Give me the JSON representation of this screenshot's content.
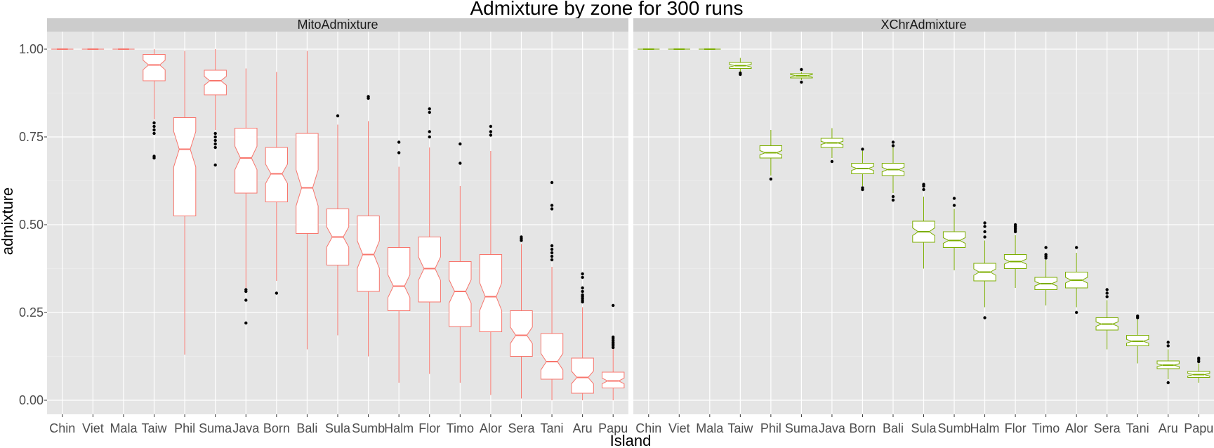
{
  "chart_data": {
    "type": "boxplot",
    "title": "Admixture by zone for 300 runs",
    "xlabel": "Island",
    "ylabel": "admixture",
    "ylim": [
      -0.04,
      1.05
    ],
    "yticks": [
      0.0,
      0.25,
      0.5,
      0.75,
      1.0
    ],
    "ytick_labels": [
      "0.00",
      "0.25",
      "0.50",
      "0.75",
      "1.00"
    ],
    "categories": [
      "Chin",
      "Viet",
      "Mala",
      "Taiw",
      "Phil",
      "Suma",
      "Java",
      "Born",
      "Bali",
      "Sula",
      "Sumb",
      "Halm",
      "Flor",
      "Timo",
      "Alor",
      "Sera",
      "Tani",
      "Aru",
      "Papu"
    ],
    "grid": true,
    "notched": true,
    "panels": [
      {
        "name": "MitoAdmixture",
        "color": "#f8766d",
        "boxes": [
          {
            "q1": 1.0,
            "median": 1.0,
            "q3": 1.0,
            "lo": 1.0,
            "hi": 1.0,
            "outliers": []
          },
          {
            "q1": 1.0,
            "median": 1.0,
            "q3": 1.0,
            "lo": 1.0,
            "hi": 1.0,
            "outliers": []
          },
          {
            "q1": 1.0,
            "median": 1.0,
            "q3": 1.0,
            "lo": 1.0,
            "hi": 1.0,
            "outliers": []
          },
          {
            "q1": 0.91,
            "median": 0.955,
            "q3": 0.985,
            "lo": 0.8,
            "hi": 1.0,
            "outliers": [
              0.79,
              0.78,
              0.77,
              0.76,
              0.695,
              0.69
            ]
          },
          {
            "q1": 0.525,
            "median": 0.715,
            "q3": 0.805,
            "lo": 0.13,
            "hi": 0.995,
            "outliers": []
          },
          {
            "q1": 0.87,
            "median": 0.91,
            "q3": 0.94,
            "lo": 0.77,
            "hi": 1.0,
            "outliers": [
              0.76,
              0.75,
              0.74,
              0.73,
              0.72,
              0.67
            ]
          },
          {
            "q1": 0.59,
            "median": 0.69,
            "q3": 0.775,
            "lo": 0.32,
            "hi": 0.945,
            "outliers": [
              0.315,
              0.31,
              0.285,
              0.22
            ]
          },
          {
            "q1": 0.565,
            "median": 0.645,
            "q3": 0.72,
            "lo": 0.34,
            "hi": 0.935,
            "outliers": [
              0.305
            ]
          },
          {
            "q1": 0.475,
            "median": 0.605,
            "q3": 0.76,
            "lo": 0.145,
            "hi": 0.995,
            "outliers": []
          },
          {
            "q1": 0.385,
            "median": 0.465,
            "q3": 0.545,
            "lo": 0.185,
            "hi": 0.785,
            "outliers": [
              0.81
            ]
          },
          {
            "q1": 0.31,
            "median": 0.415,
            "q3": 0.525,
            "lo": 0.125,
            "hi": 0.795,
            "outliers": [
              0.865,
              0.86
            ]
          },
          {
            "q1": 0.255,
            "median": 0.325,
            "q3": 0.435,
            "lo": 0.05,
            "hi": 0.665,
            "outliers": [
              0.735,
              0.705
            ]
          },
          {
            "q1": 0.28,
            "median": 0.375,
            "q3": 0.465,
            "lo": 0.075,
            "hi": 0.72,
            "outliers": [
              0.83,
              0.82,
              0.765,
              0.75
            ]
          },
          {
            "q1": 0.21,
            "median": 0.31,
            "q3": 0.395,
            "lo": 0.05,
            "hi": 0.61,
            "outliers": [
              0.73,
              0.675
            ]
          },
          {
            "q1": 0.195,
            "median": 0.295,
            "q3": 0.415,
            "lo": 0.015,
            "hi": 0.71,
            "outliers": [
              0.78,
              0.765,
              0.755
            ]
          },
          {
            "q1": 0.125,
            "median": 0.185,
            "q3": 0.255,
            "lo": 0.005,
            "hi": 0.445,
            "outliers": [
              0.465,
              0.46,
              0.455
            ]
          },
          {
            "q1": 0.06,
            "median": 0.11,
            "q3": 0.19,
            "lo": 0.0,
            "hi": 0.38,
            "outliers": [
              0.62,
              0.555,
              0.545,
              0.44,
              0.43,
              0.42,
              0.41,
              0.4
            ]
          },
          {
            "q1": 0.02,
            "median": 0.065,
            "q3": 0.12,
            "lo": 0.0,
            "hi": 0.265,
            "outliers": [
              0.36,
              0.35,
              0.32,
              0.31,
              0.3,
              0.295,
              0.29,
              0.285,
              0.28
            ]
          },
          {
            "q1": 0.035,
            "median": 0.055,
            "q3": 0.08,
            "lo": 0.0,
            "hi": 0.145,
            "outliers": [
              0.27,
              0.18,
              0.175,
              0.17,
              0.165,
              0.16,
              0.155,
              0.15
            ]
          }
        ]
      },
      {
        "name": "XChrAdmixture",
        "color": "#7cae00",
        "boxes": [
          {
            "q1": 1.0,
            "median": 1.0,
            "q3": 1.0,
            "lo": 1.0,
            "hi": 1.0,
            "outliers": []
          },
          {
            "q1": 1.0,
            "median": 1.0,
            "q3": 1.0,
            "lo": 1.0,
            "hi": 1.0,
            "outliers": []
          },
          {
            "q1": 1.0,
            "median": 1.0,
            "q3": 1.0,
            "lo": 1.0,
            "hi": 1.0,
            "outliers": []
          },
          {
            "q1": 0.945,
            "median": 0.953,
            "q3": 0.962,
            "lo": 0.935,
            "hi": 0.975,
            "outliers": [
              0.932,
              0.928
            ]
          },
          {
            "q1": 0.69,
            "median": 0.705,
            "q3": 0.725,
            "lo": 0.64,
            "hi": 0.77,
            "outliers": [
              0.63
            ]
          },
          {
            "q1": 0.918,
            "median": 0.924,
            "q3": 0.93,
            "lo": 0.912,
            "hi": 0.935,
            "outliers": [
              0.942,
              0.906
            ]
          },
          {
            "q1": 0.72,
            "median": 0.733,
            "q3": 0.746,
            "lo": 0.69,
            "hi": 0.775,
            "outliers": [
              0.68
            ]
          },
          {
            "q1": 0.645,
            "median": 0.66,
            "q3": 0.675,
            "lo": 0.61,
            "hi": 0.71,
            "outliers": [
              0.715,
              0.605,
              0.6
            ]
          },
          {
            "q1": 0.64,
            "median": 0.657,
            "q3": 0.675,
            "lo": 0.59,
            "hi": 0.72,
            "outliers": [
              0.735,
              0.725,
              0.58,
              0.57
            ]
          },
          {
            "q1": 0.45,
            "median": 0.48,
            "q3": 0.51,
            "lo": 0.375,
            "hi": 0.58,
            "outliers": [
              0.615,
              0.61,
              0.6
            ]
          },
          {
            "q1": 0.435,
            "median": 0.455,
            "q3": 0.48,
            "lo": 0.37,
            "hi": 0.545,
            "outliers": [
              0.575,
              0.555
            ]
          },
          {
            "q1": 0.34,
            "median": 0.365,
            "q3": 0.39,
            "lo": 0.265,
            "hi": 0.455,
            "outliers": [
              0.505,
              0.495,
              0.48,
              0.465,
              0.235
            ]
          },
          {
            "q1": 0.375,
            "median": 0.395,
            "q3": 0.415,
            "lo": 0.32,
            "hi": 0.47,
            "outliers": [
              0.5,
              0.495,
              0.49,
              0.485,
              0.48
            ]
          },
          {
            "q1": 0.315,
            "median": 0.332,
            "q3": 0.35,
            "lo": 0.27,
            "hi": 0.4,
            "outliers": [
              0.435,
              0.415,
              0.41,
              0.405
            ]
          },
          {
            "q1": 0.32,
            "median": 0.342,
            "q3": 0.365,
            "lo": 0.265,
            "hi": 0.42,
            "outliers": [
              0.435,
              0.25
            ]
          },
          {
            "q1": 0.2,
            "median": 0.217,
            "q3": 0.235,
            "lo": 0.145,
            "hi": 0.285,
            "outliers": [
              0.315,
              0.305,
              0.295
            ]
          },
          {
            "q1": 0.155,
            "median": 0.168,
            "q3": 0.185,
            "lo": 0.105,
            "hi": 0.23,
            "outliers": [
              0.24,
              0.235
            ]
          },
          {
            "q1": 0.09,
            "median": 0.1,
            "q3": 0.112,
            "lo": 0.06,
            "hi": 0.145,
            "outliers": [
              0.165,
              0.155,
              0.05
            ]
          },
          {
            "q1": 0.065,
            "median": 0.073,
            "q3": 0.082,
            "lo": 0.05,
            "hi": 0.105,
            "outliers": [
              0.12,
              0.115,
              0.11
            ]
          }
        ]
      }
    ]
  }
}
